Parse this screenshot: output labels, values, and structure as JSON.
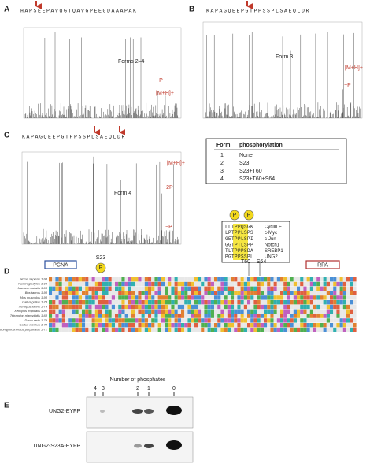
{
  "panel_a": {
    "letter": "A",
    "sequence": "HAPSEEPAVQGTQAVGPEEGDAAAPAK",
    "form": "Forms 2–4",
    "minus_p": "−P",
    "parent_ion": "[M+H]+"
  },
  "panel_b": {
    "letter": "B",
    "sequence": "KAPAGQEEPGTPPSSPLSAEQLDR",
    "form": "Form 3",
    "parent_ion": "[M+H]+",
    "minus_p": "−P"
  },
  "panel_c": {
    "letter": "C",
    "sequence": "KAPAGQEEPGTPPSSPLSAEQLDR",
    "form": "Form 4",
    "parent_ion": "[M+H]+",
    "minus_2p": "−2P",
    "minus_p": "−P"
  },
  "form_table": {
    "header": [
      "Form",
      "phosphorylation"
    ],
    "rows": [
      [
        "1",
        "None"
      ],
      [
        "2",
        "S23"
      ],
      [
        "3",
        "S23+T60"
      ],
      [
        "4",
        "S23+T60+S64"
      ]
    ]
  },
  "motifs": {
    "p": "P",
    "rows": [
      [
        "LLTPPQSGK",
        "Cyclin E"
      ],
      [
        "LPTPPLSPS",
        "c-Myc"
      ],
      [
        "GETPPLSPI",
        "c-Jun"
      ],
      [
        "GGTPTLSPP",
        "Notch1"
      ],
      [
        "TLTPPPSDA",
        "SREBP1"
      ],
      [
        "PGTPPSSPL",
        "UNG2"
      ]
    ]
  },
  "panel_d": {
    "letter": "D",
    "pcna": "PCNA",
    "rpa": "RPA",
    "s23": "S23",
    "t60": "T60",
    "s64": "S64",
    "species": [
      "Homo sapiens 1-93",
      "Pan troglodytes 1-93",
      "Macaca mulatta 1-93",
      "Bos taurus 1-93",
      "Mus musculus 1-93",
      "Gallus gallus 1-78",
      "Xenopus laevis 1-79",
      "Xenopus tropicalis 1-80",
      "Tetraodon nigroviridis 1-68",
      "Danio rerio 1-79",
      "Gadus morhua 1-72",
      "Strongylocentrotus purpuratus 1-71"
    ]
  },
  "panel_e": {
    "letter": "E",
    "title": "Number of phosphates",
    "lanes": [
      "4",
      "3",
      "2",
      "1",
      "0"
    ],
    "rows": [
      "UNG2-EYFP",
      "UNG2-S23A-EYFP"
    ]
  }
}
